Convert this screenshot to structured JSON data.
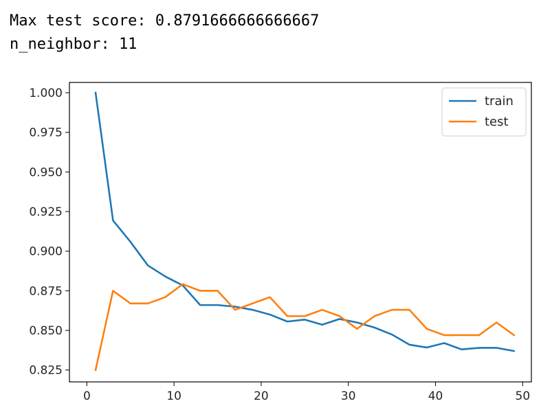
{
  "output": {
    "line1": "Max test score: 0.8791666666666667",
    "line2": "n_neighbor: 11"
  },
  "chart_data": {
    "type": "line",
    "title": "",
    "xlabel": "",
    "ylabel": "",
    "xlim": [
      -2,
      51
    ],
    "ylim": [
      0.8175,
      1.0065
    ],
    "x_ticks": [
      0,
      10,
      20,
      30,
      40,
      50
    ],
    "y_ticks": [
      0.825,
      0.85,
      0.875,
      0.9,
      0.925,
      0.95,
      0.975,
      1.0
    ],
    "x_tick_labels": [
      "0",
      "10",
      "20",
      "30",
      "40",
      "50"
    ],
    "y_tick_labels": [
      "0.825",
      "0.850",
      "0.875",
      "0.900",
      "0.925",
      "0.950",
      "0.975",
      "1.000"
    ],
    "grid": false,
    "legend_position": "top-right",
    "x": [
      1,
      3,
      5,
      7,
      9,
      11,
      13,
      15,
      17,
      19,
      21,
      23,
      25,
      27,
      29,
      31,
      33,
      35,
      37,
      39,
      41,
      43,
      45,
      47,
      49
    ],
    "series": [
      {
        "name": "train",
        "color": "#1f77b4",
        "values": [
          1.0,
          0.9194,
          0.9059,
          0.891,
          0.884,
          0.8784,
          0.866,
          0.866,
          0.865,
          0.863,
          0.86,
          0.8556,
          0.8568,
          0.8536,
          0.8572,
          0.855,
          0.8518,
          0.8474,
          0.841,
          0.8392,
          0.842,
          0.838,
          0.839,
          0.839,
          0.837
        ]
      },
      {
        "name": "test",
        "color": "#ff7f0e",
        "values": [
          0.825,
          0.875,
          0.867,
          0.867,
          0.871,
          0.8792,
          0.875,
          0.875,
          0.863,
          0.867,
          0.871,
          0.859,
          0.859,
          0.863,
          0.859,
          0.851,
          0.859,
          0.863,
          0.863,
          0.851,
          0.847,
          0.847,
          0.847,
          0.855,
          0.847
        ]
      }
    ]
  }
}
